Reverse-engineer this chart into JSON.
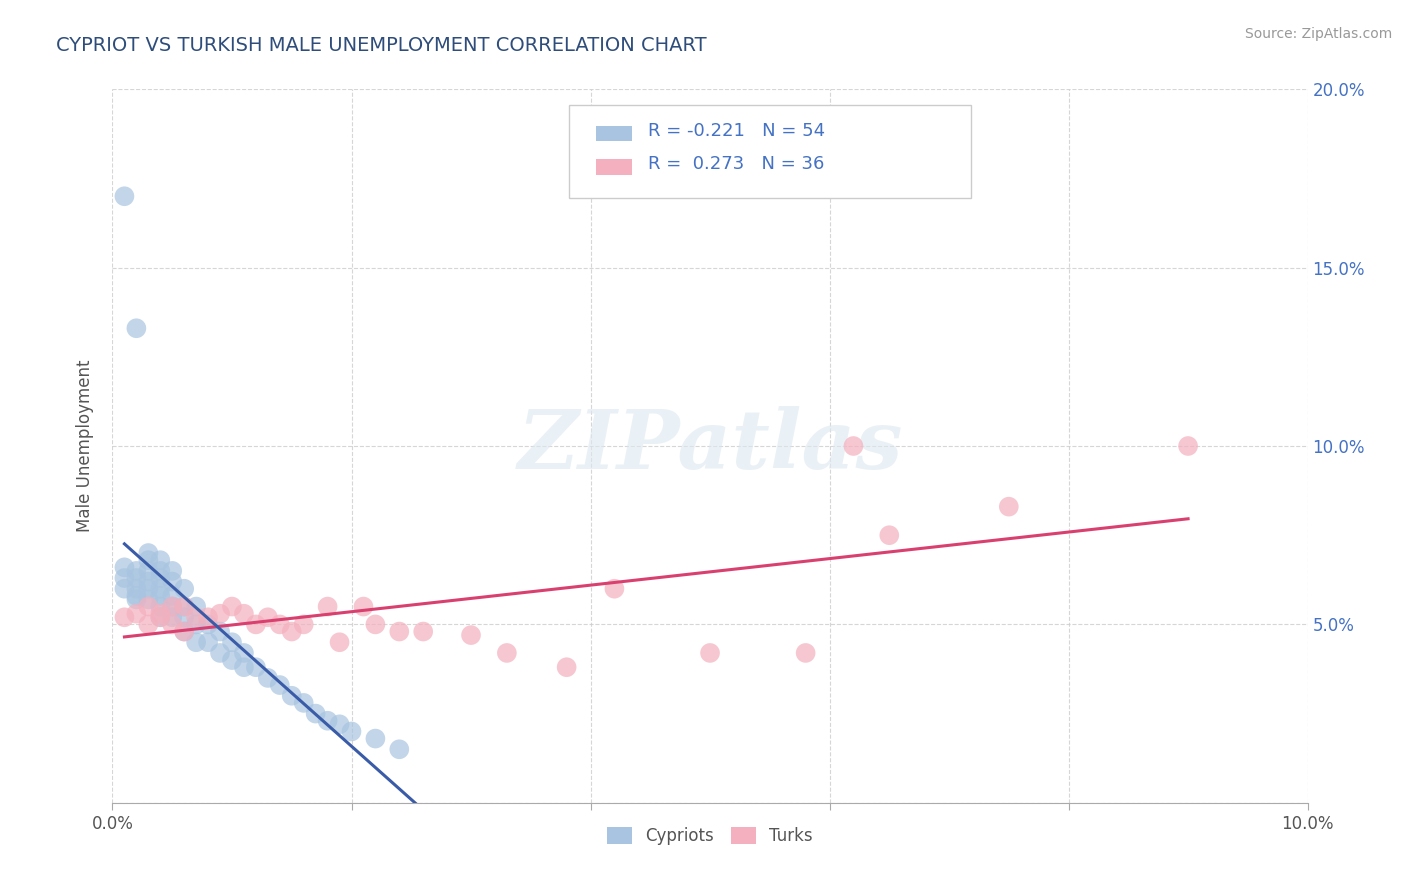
{
  "title": "CYPRIOT VS TURKISH MALE UNEMPLOYMENT CORRELATION CHART",
  "source": "Source: ZipAtlas.com",
  "ylabel": "Male Unemployment",
  "xlim": [
    0.0,
    0.1
  ],
  "ylim": [
    0.0,
    0.2
  ],
  "xticks": [
    0.0,
    0.02,
    0.04,
    0.06,
    0.08,
    0.1
  ],
  "yticks": [
    0.0,
    0.05,
    0.1,
    0.15,
    0.2
  ],
  "xtick_labels": [
    "0.0%",
    "",
    "",
    "",
    "",
    "10.0%"
  ],
  "ytick_labels_right": [
    "",
    "5.0%",
    "10.0%",
    "15.0%",
    "20.0%"
  ],
  "cypriot_color": "#a8c4e0",
  "turk_color": "#f4b0be",
  "cypriot_line_color": "#3a5ca8",
  "turk_line_color": "#d94070",
  "R_cypriot": -0.221,
  "N_cypriot": 54,
  "R_turk": 0.273,
  "N_turk": 36,
  "watermark": "ZIPatlas",
  "title_color": "#2e4d7b",
  "legend_text_color": "#4472c4",
  "cypriot_x": [
    0.001,
    0.001,
    0.001,
    0.002,
    0.002,
    0.002,
    0.002,
    0.002,
    0.003,
    0.003,
    0.003,
    0.003,
    0.003,
    0.003,
    0.004,
    0.004,
    0.004,
    0.004,
    0.004,
    0.004,
    0.004,
    0.005,
    0.005,
    0.005,
    0.005,
    0.005,
    0.006,
    0.006,
    0.006,
    0.006,
    0.007,
    0.007,
    0.007,
    0.008,
    0.008,
    0.009,
    0.009,
    0.01,
    0.01,
    0.011,
    0.011,
    0.012,
    0.013,
    0.014,
    0.015,
    0.016,
    0.017,
    0.018,
    0.019,
    0.02,
    0.022,
    0.024,
    0.001,
    0.002
  ],
  "cypriot_y": [
    0.066,
    0.063,
    0.06,
    0.065,
    0.063,
    0.06,
    0.058,
    0.057,
    0.07,
    0.068,
    0.065,
    0.062,
    0.06,
    0.057,
    0.068,
    0.065,
    0.063,
    0.06,
    0.058,
    0.055,
    0.052,
    0.065,
    0.062,
    0.058,
    0.055,
    0.052,
    0.06,
    0.055,
    0.052,
    0.048,
    0.055,
    0.05,
    0.045,
    0.05,
    0.045,
    0.048,
    0.042,
    0.045,
    0.04,
    0.042,
    0.038,
    0.038,
    0.035,
    0.033,
    0.03,
    0.028,
    0.025,
    0.023,
    0.022,
    0.02,
    0.018,
    0.015,
    0.17,
    0.133
  ],
  "turk_x": [
    0.001,
    0.002,
    0.003,
    0.003,
    0.004,
    0.004,
    0.005,
    0.005,
    0.006,
    0.006,
    0.007,
    0.008,
    0.009,
    0.01,
    0.011,
    0.012,
    0.013,
    0.014,
    0.015,
    0.016,
    0.018,
    0.019,
    0.021,
    0.022,
    0.024,
    0.026,
    0.03,
    0.033,
    0.038,
    0.042,
    0.05,
    0.058,
    0.062,
    0.065,
    0.075,
    0.09
  ],
  "turk_y": [
    0.052,
    0.053,
    0.055,
    0.05,
    0.053,
    0.052,
    0.055,
    0.05,
    0.055,
    0.048,
    0.052,
    0.052,
    0.053,
    0.055,
    0.053,
    0.05,
    0.052,
    0.05,
    0.048,
    0.05,
    0.055,
    0.045,
    0.055,
    0.05,
    0.048,
    0.048,
    0.047,
    0.042,
    0.038,
    0.06,
    0.042,
    0.042,
    0.1,
    0.075,
    0.083,
    0.1
  ]
}
